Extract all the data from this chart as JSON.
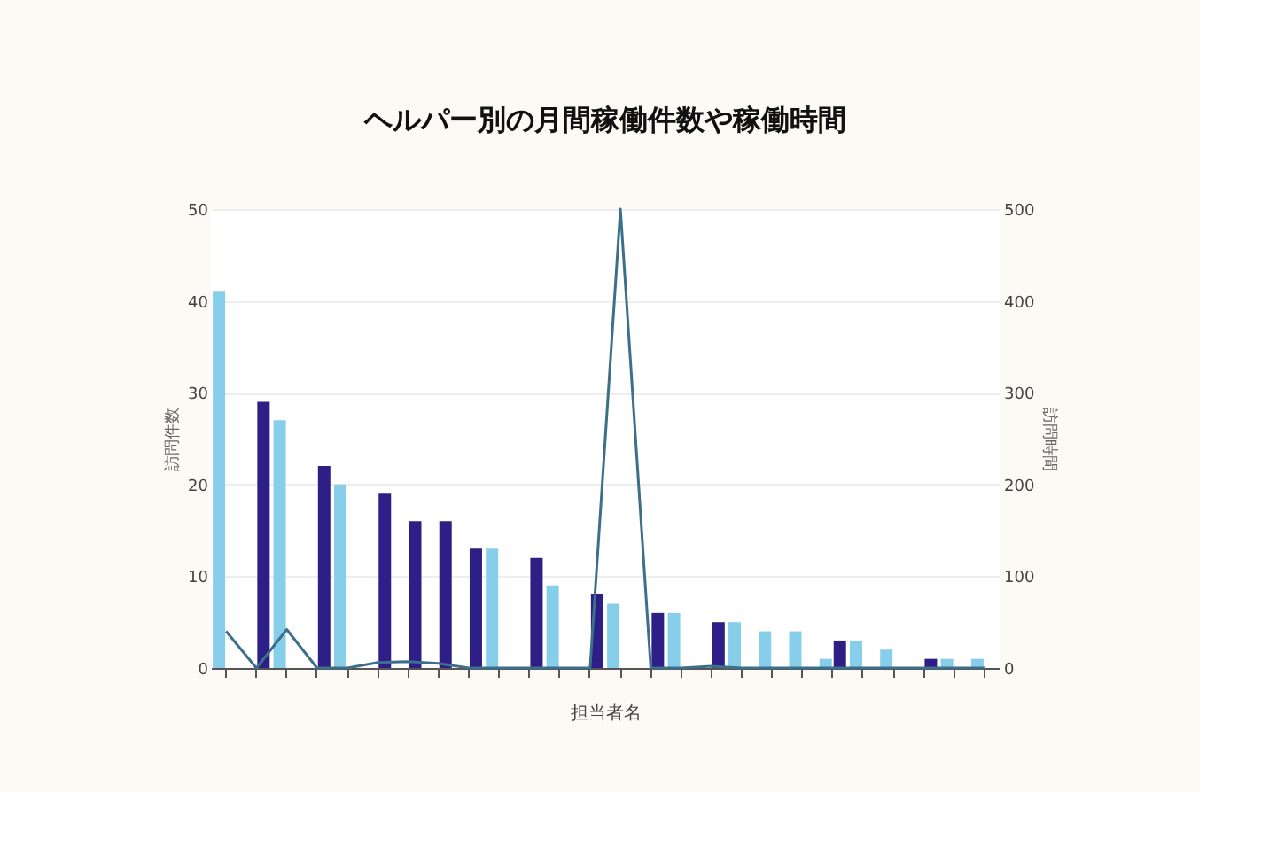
{
  "chart_data": {
    "type": "bar",
    "title": "ヘルパー別の月間稼働件数や稼働時間",
    "xlabel": "担当者名",
    "ylabel": "訪問件数",
    "y2label": "訪問時間",
    "categories": [
      null,
      null,
      null,
      null,
      null,
      null,
      null,
      null,
      null,
      null,
      null,
      null,
      null,
      null,
      null,
      null,
      null,
      null,
      null,
      null,
      null,
      null,
      null,
      null,
      null,
      null
    ],
    "series": [
      {
        "color": "#87ceeb",
        "values": [
          41,
          null,
          27,
          null,
          20,
          null,
          null,
          null,
          null,
          13,
          null,
          9,
          null,
          7,
          null,
          6,
          null,
          5,
          4,
          4,
          1,
          3,
          2,
          null,
          1,
          1
        ]
      },
      {
        "color": "#2e1f87",
        "values": [
          null,
          29,
          null,
          22,
          null,
          19,
          16,
          16,
          13,
          null,
          12,
          null,
          8,
          null,
          6,
          null,
          5,
          null,
          null,
          null,
          3,
          null,
          null,
          1,
          null,
          null
        ]
      },
      {
        "type": "line",
        "axis": "y2",
        "color": "#3e6f8a",
        "values": [
          40,
          0,
          42,
          0,
          0,
          6,
          7,
          5,
          0,
          0,
          0,
          0,
          0,
          500,
          0,
          0,
          2,
          0,
          0,
          0,
          0,
          0,
          0,
          0,
          0,
          0
        ]
      }
    ],
    "ylim": [
      0,
      50
    ],
    "yticks": [
      0,
      10,
      20,
      30,
      40,
      50
    ],
    "y2lim": [
      0,
      500
    ],
    "y2ticks": [
      0,
      100,
      200,
      300,
      400,
      500
    ],
    "grid": "y"
  }
}
